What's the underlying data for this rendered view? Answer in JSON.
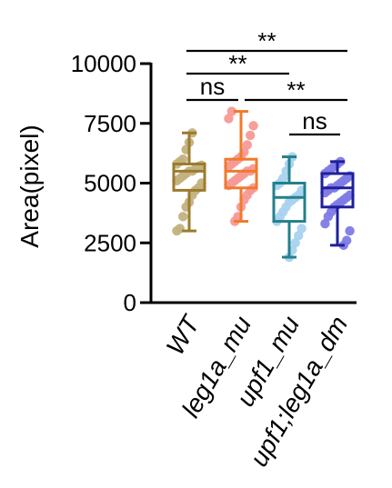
{
  "chart_data": {
    "type": "boxplot",
    "ylabel": "Area(pixel)",
    "ylim": [
      0,
      10000
    ],
    "yticks": [
      "0",
      "2500",
      "5000",
      "7500",
      "10000"
    ],
    "ytick_values": [
      0,
      2500,
      5000,
      7500,
      10000
    ],
    "grid": false,
    "categories": [
      "WT",
      "leg1a_mu",
      "upf1_mu",
      "upf1;leg1a_dm"
    ],
    "series": [
      {
        "category": "WT",
        "box_color": "#9c7b2e",
        "point_color": "#c2b27e",
        "min": 3000,
        "q1": 4700,
        "median": 5500,
        "q3": 5800,
        "max": 7100,
        "points": [
          3000,
          3100,
          3600,
          4000,
          4200,
          4500,
          4700,
          4800,
          5000,
          5100,
          5200,
          5300,
          5400,
          5500,
          5500,
          5600,
          5700,
          5750,
          5800,
          5900,
          6000,
          6400,
          6700,
          7100
        ]
      },
      {
        "category": "leg1a_mu",
        "box_color": "#f07a2c",
        "point_color": "#f79a96",
        "min": 3400,
        "q1": 4800,
        "median": 5500,
        "q3": 6000,
        "max": 8000,
        "points": [
          3400,
          3600,
          4000,
          4300,
          4500,
          4700,
          4800,
          4900,
          5000,
          5100,
          5200,
          5300,
          5400,
          5500,
          5500,
          5600,
          5700,
          5800,
          5900,
          6000,
          6100,
          6300,
          6600,
          7000,
          7400,
          7700,
          8000
        ]
      },
      {
        "category": "upf1_mu",
        "box_color": "#24808c",
        "point_color": "#a8d3ef",
        "min": 1900,
        "q1": 3400,
        "median": 4400,
        "q3": 5000,
        "max": 6100,
        "points": [
          1900,
          2200,
          2500,
          2800,
          3100,
          3400,
          3600,
          3800,
          4000,
          4200,
          4300,
          4400,
          4500,
          4700,
          4900,
          5000,
          5200,
          5500,
          5800,
          6100
        ]
      },
      {
        "category": "upf1;leg1a_dm",
        "box_color": "#1f1f9c",
        "point_color": "#7e7be6",
        "min": 2400,
        "q1": 4000,
        "median": 4800,
        "q3": 5400,
        "max": 5900,
        "points": [
          2400,
          2600,
          3000,
          3300,
          3600,
          3800,
          4000,
          4100,
          4200,
          4300,
          4400,
          4500,
          4600,
          4700,
          4800,
          4800,
          4900,
          5000,
          5100,
          5200,
          5300,
          5400,
          5500,
          5600,
          5700,
          5800,
          5900
        ]
      }
    ],
    "significance": [
      {
        "label": "**",
        "from": 0,
        "to": 3
      },
      {
        "label": "**",
        "from": 0,
        "to": 2
      },
      {
        "label": "ns",
        "from": 0,
        "to": 1
      },
      {
        "label": "**",
        "from": 1,
        "to": 3
      },
      {
        "label": "ns",
        "from": 2,
        "to": 3
      }
    ]
  }
}
